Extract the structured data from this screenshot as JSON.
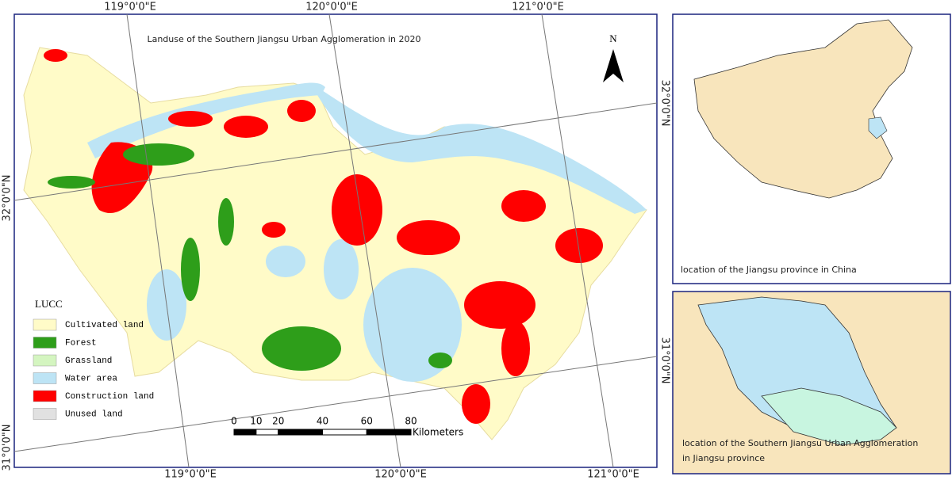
{
  "map": {
    "title": "Landuse of the Southern Jiangsu Urban Agglomeration in 2020",
    "north": "N",
    "graticule": {
      "top": [
        "119°0'0\"E",
        "120°0'0\"E",
        "121°0'0\"E"
      ],
      "bottom": [
        "119°0'0\"E",
        "120°0'0\"E",
        "121°0'0\"E"
      ],
      "left": [
        "32°0'0\"N",
        "31°0'0\"N"
      ],
      "right": [
        "32°0'0\"N",
        "31°0'0\"N"
      ]
    },
    "legend": {
      "title": "LUCC",
      "items": [
        {
          "label": "Cultivated land",
          "color": "#fffbc8"
        },
        {
          "label": "Forest",
          "color": "#2e9e1a"
        },
        {
          "label": "Grassland",
          "color": "#d4f5c0"
        },
        {
          "label": "Water area",
          "color": "#bde4f5"
        },
        {
          "label": "Construction land",
          "color": "#ff0000"
        },
        {
          "label": "Unused land",
          "color": "#e1e1e1"
        }
      ]
    },
    "scale_bar": {
      "ticks": [
        0,
        10,
        20,
        40,
        60,
        80
      ],
      "unit": "Kilometers"
    }
  },
  "insets": [
    {
      "caption": [
        "location of the Jiangsu province in China"
      ]
    },
    {
      "caption": [
        "location of the Southern Jiangsu Urban Agglomeration",
        "in Jiangsu province"
      ]
    }
  ]
}
